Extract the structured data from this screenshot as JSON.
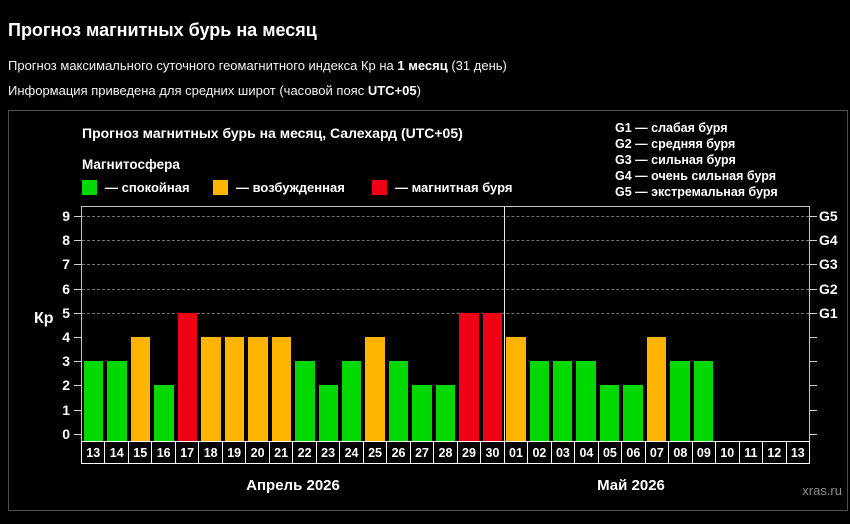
{
  "header": {
    "title": "Прогноз магнитных бурь на месяц",
    "line1": {
      "prefix": "Прогноз максимального суточного геомагнитного индекса Кр на ",
      "bold": "1 месяц",
      "suffix": " (31 день)"
    },
    "line2": {
      "prefix": "Информация приведена для средних широт (часовой пояс ",
      "bold": "UTC+05",
      "suffix": ")"
    }
  },
  "panel": {
    "chart_title": "Прогноз магнитных бурь на месяц, Салехард (UTC+05)",
    "legend_title": "Магнитосфера",
    "legend_items": [
      {
        "name": "quiet",
        "label": "— спокойная",
        "color": "#00d800"
      },
      {
        "name": "excited",
        "label": "— возбужденная",
        "color": "#ffb400"
      },
      {
        "name": "storm",
        "label": "— магнитная буря",
        "color": "#f00014"
      }
    ],
    "g_scale_lines": [
      "G1 — слабая буря",
      "G2 — средняя буря",
      "G3 — сильная буря",
      "G4 — очень сильная буря",
      "G5 — экстремальная буря"
    ],
    "watermark": "xras.ru"
  },
  "chart_data": {
    "type": "bar",
    "title": "Прогноз магнитных бурь на месяц, Салехард (UTC+05)",
    "ylabel": "Кр",
    "ylim": [
      0,
      9
    ],
    "yticks": [
      0,
      1,
      2,
      3,
      4,
      5,
      6,
      7,
      8,
      9
    ],
    "grid_levels": [
      5,
      6,
      7,
      8,
      9
    ],
    "right_axis_labels": [
      {
        "kp": 5,
        "label": "G1"
      },
      {
        "kp": 6,
        "label": "G2"
      },
      {
        "kp": 7,
        "label": "G3"
      },
      {
        "kp": 8,
        "label": "G4"
      },
      {
        "kp": 9,
        "label": "G5"
      }
    ],
    "legend_rule": {
      "quiet_kp_max": 3,
      "excited_kp": 4,
      "storm_kp_min": 5
    },
    "colors": {
      "quiet": "#00d800",
      "excited": "#ffb400",
      "storm": "#f00014"
    },
    "months": [
      {
        "label": "Апрель 2026",
        "days": 18
      },
      {
        "label": "Май 2026",
        "days": 13
      }
    ],
    "categories": [
      "13",
      "14",
      "15",
      "16",
      "17",
      "18",
      "19",
      "20",
      "21",
      "22",
      "23",
      "24",
      "25",
      "26",
      "27",
      "28",
      "29",
      "30",
      "01",
      "02",
      "03",
      "04",
      "05",
      "06",
      "07",
      "08",
      "09",
      "10",
      "11",
      "12",
      "13"
    ],
    "values": [
      3,
      3,
      4,
      2,
      5,
      4,
      4,
      4,
      4,
      3,
      2,
      3,
      4,
      3,
      2,
      2,
      5,
      5,
      4,
      3,
      3,
      3,
      2,
      2,
      4,
      3,
      3,
      0,
      0,
      0,
      0
    ]
  }
}
